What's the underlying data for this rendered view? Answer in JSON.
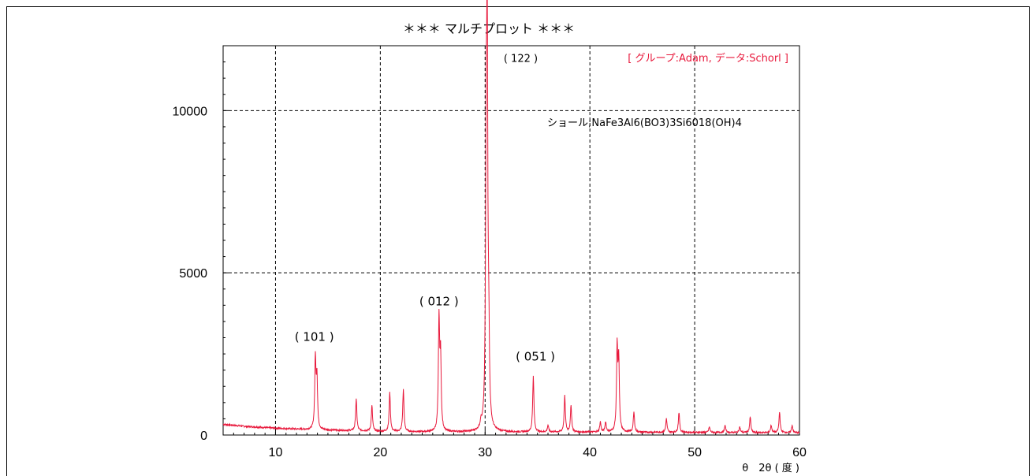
{
  "chart_data": {
    "type": "line",
    "title": "＊＊＊ マルチプロット ＊＊＊",
    "xlabel": "θ　2θ ( 度 )",
    "ylabel": "",
    "xlim": [
      5,
      60
    ],
    "ylim": [
      0,
      12000
    ],
    "x_ticks": [
      10,
      20,
      30,
      40,
      50,
      60
    ],
    "y_ticks": [
      0,
      5000,
      10000
    ],
    "grid": true,
    "legend_text": "[ グループ:Adam, データ:Schorl ]",
    "compound_label": "ショール;NaFe3Al6(BO3)3Si6018(OH)4",
    "series_color": "#e8193c",
    "baseline": [
      [
        5,
        330
      ],
      [
        7,
        270
      ],
      [
        10,
        210
      ],
      [
        13,
        170
      ],
      [
        15,
        150
      ],
      [
        18,
        130
      ],
      [
        20,
        110
      ],
      [
        23,
        100
      ],
      [
        26,
        95
      ],
      [
        30,
        95
      ],
      [
        35,
        90
      ],
      [
        40,
        90
      ],
      [
        45,
        85
      ],
      [
        50,
        80
      ],
      [
        55,
        75
      ],
      [
        60,
        70
      ]
    ],
    "peaks": [
      {
        "x": 13.8,
        "y": 2300
      },
      {
        "x": 13.95,
        "y": 1700
      },
      {
        "x": 17.7,
        "y": 1100
      },
      {
        "x": 19.2,
        "y": 900
      },
      {
        "x": 20.9,
        "y": 1300
      },
      {
        "x": 22.2,
        "y": 1400
      },
      {
        "x": 25.6,
        "y": 3500
      },
      {
        "x": 25.75,
        "y": 2300
      },
      {
        "x": 29.6,
        "y": 300
      },
      {
        "x": 30.1,
        "y": 7400
      },
      {
        "x": 30.2,
        "y": 11400
      },
      {
        "x": 30.35,
        "y": 2300
      },
      {
        "x": 34.6,
        "y": 1800
      },
      {
        "x": 36.0,
        "y": 300
      },
      {
        "x": 37.6,
        "y": 1200
      },
      {
        "x": 38.2,
        "y": 900
      },
      {
        "x": 41.0,
        "y": 400
      },
      {
        "x": 41.5,
        "y": 400
      },
      {
        "x": 42.6,
        "y": 2600
      },
      {
        "x": 42.75,
        "y": 2200
      },
      {
        "x": 44.2,
        "y": 700
      },
      {
        "x": 47.3,
        "y": 500
      },
      {
        "x": 48.5,
        "y": 700
      },
      {
        "x": 51.4,
        "y": 250
      },
      {
        "x": 52.9,
        "y": 300
      },
      {
        "x": 54.3,
        "y": 250
      },
      {
        "x": 55.3,
        "y": 550
      },
      {
        "x": 57.3,
        "y": 300
      },
      {
        "x": 58.1,
        "y": 700
      },
      {
        "x": 59.3,
        "y": 300
      }
    ],
    "annotations": [
      {
        "text": "( 101 )",
        "x": 13.7,
        "y": 2900
      },
      {
        "text": "( 012 )",
        "x": 25.6,
        "y": 4000
      },
      {
        "text": "( 122 )",
        "x": 33.4,
        "y": 11500
      },
      {
        "text": "( 051 )",
        "x": 34.8,
        "y": 2300
      }
    ]
  }
}
